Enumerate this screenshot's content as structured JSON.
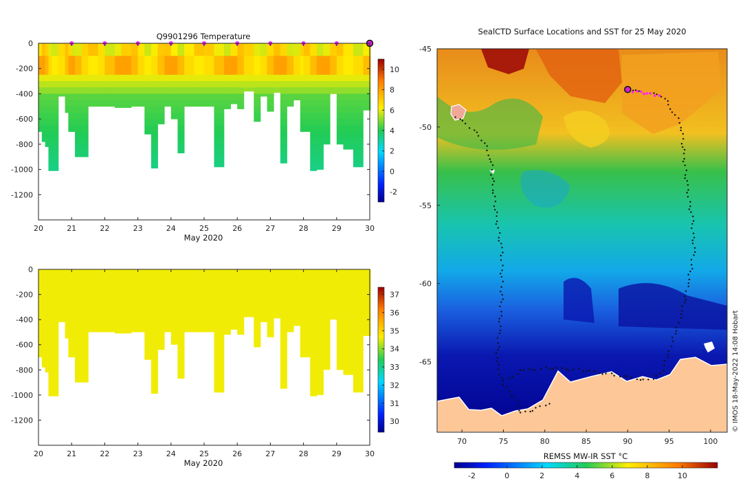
{
  "chart_data": [
    {
      "id": "temperature-section",
      "type": "heatmap",
      "title": "Q9901296  Temperature",
      "xlabel": "May 2020",
      "ylabel": "",
      "x_ticks": [
        "20",
        "21",
        "22",
        "23",
        "24",
        "25",
        "26",
        "27",
        "28",
        "29",
        "30"
      ],
      "y_ticks": [
        "0",
        "-200",
        "-400",
        "-600",
        "-800",
        "-1000",
        "-1200"
      ],
      "xlim": [
        20,
        30
      ],
      "ylim": [
        -1400,
        0
      ],
      "colorbar": {
        "ticks": [
          "10",
          "8",
          "6",
          "4",
          "2",
          "0",
          "-2"
        ],
        "range": [
          -3,
          11
        ]
      },
      "profile_days": [
        20.0,
        20.1,
        20.2,
        20.3,
        20.4,
        20.6,
        20.8,
        20.9,
        21.0,
        21.1,
        21.3,
        21.5,
        21.8,
        22.0,
        22.3,
        22.5,
        22.8,
        23.0,
        23.2,
        23.4,
        23.6,
        23.8,
        24.0,
        24.2,
        24.4,
        24.7,
        25.0,
        25.3,
        25.6,
        25.8,
        26.0,
        26.2,
        26.5,
        26.7,
        26.9,
        27.1,
        27.3,
        27.5,
        27.7,
        27.9,
        28.0,
        28.2,
        28.4,
        28.6,
        28.8,
        29.0,
        29.2,
        29.5,
        29.8,
        30.0
      ],
      "profile_max_depth": [
        -700,
        -780,
        -820,
        -1010,
        -1010,
        -420,
        -550,
        -700,
        -700,
        -900,
        -900,
        -500,
        -500,
        -500,
        -510,
        -510,
        -500,
        -500,
        -720,
        -990,
        -640,
        -500,
        -600,
        -870,
        -500,
        -500,
        -500,
        -980,
        -520,
        -480,
        -520,
        -380,
        -620,
        -420,
        -540,
        -390,
        -950,
        -500,
        -450,
        -700,
        -700,
        -1010,
        -1000,
        -800,
        -400,
        -800,
        -840,
        -980,
        -530,
        -530
      ],
      "stations": [
        "21",
        "22",
        "23",
        "24",
        "25",
        "26",
        "27",
        "28",
        "29"
      ],
      "current_station": "30"
    },
    {
      "id": "salinity-section",
      "type": "heatmap",
      "title": "",
      "xlabel": "May 2020",
      "ylabel": "",
      "x_ticks": [
        "20",
        "21",
        "22",
        "23",
        "24",
        "25",
        "26",
        "27",
        "28",
        "29",
        "30"
      ],
      "y_ticks": [
        "0",
        "-200",
        "-400",
        "-600",
        "-800",
        "-1000",
        "-1200"
      ],
      "xlim": [
        20,
        30
      ],
      "ylim": [
        -1400,
        0
      ],
      "colorbar": {
        "ticks": [
          "37",
          "36",
          "35",
          "34",
          "33",
          "32",
          "31",
          "30"
        ],
        "range": [
          29.4,
          37.4
        ]
      },
      "profile_max_depth": [
        -700,
        -780,
        -820,
        -1010,
        -1010,
        -420,
        -550,
        -700,
        -700,
        -900,
        -900,
        -500,
        -500,
        -500,
        -510,
        -510,
        -500,
        -500,
        -720,
        -990,
        -640,
        -500,
        -600,
        -870,
        -500,
        -500,
        -500,
        -980,
        -520,
        -480,
        -520,
        -380,
        -620,
        -420,
        -540,
        -390,
        -950,
        -500,
        -450,
        -700,
        -700,
        -1010,
        -1000,
        -800,
        -400,
        -800,
        -840,
        -980,
        -530,
        -530
      ],
      "uniform_value": 34.6
    },
    {
      "id": "sst-map",
      "type": "heatmap",
      "title": "SealCTD Surface Locations and SST for 25 May 2020",
      "xlabel": "",
      "ylabel": "",
      "x_ticks": [
        "70",
        "75",
        "80",
        "85",
        "90",
        "95",
        "100"
      ],
      "y_ticks": [
        "-45",
        "-50",
        "-55",
        "-60",
        "-65"
      ],
      "xlim": [
        67,
        102
      ],
      "ylim": [
        -69.5,
        -45
      ],
      "colorbar": {
        "label": "REMSS MW-IR SST °C",
        "ticks": [
          "-2",
          "0",
          "2",
          "4",
          "6",
          "8",
          "10"
        ],
        "range": [
          -3,
          12
        ]
      },
      "track_west": [
        [
          69.2,
          -49.3
        ],
        [
          71,
          -50
        ],
        [
          72.5,
          -50.8
        ],
        [
          73.5,
          -52
        ],
        [
          73.8,
          -54
        ],
        [
          74.2,
          -56
        ],
        [
          74.8,
          -58
        ],
        [
          74.8,
          -61
        ],
        [
          74.5,
          -63
        ],
        [
          74.2,
          -65
        ],
        [
          75,
          -66.5
        ],
        [
          76.5,
          -67.3
        ],
        [
          77.2,
          -68.3
        ],
        [
          79,
          -68
        ],
        [
          81,
          -67.5
        ]
      ],
      "track_east": [
        [
          90,
          -47.6
        ],
        [
          92,
          -47.8
        ],
        [
          94.2,
          -48
        ],
        [
          95.5,
          -49
        ],
        [
          96.5,
          -50
        ],
        [
          96.8,
          -52
        ],
        [
          97.2,
          -54
        ],
        [
          97.8,
          -56
        ],
        [
          98,
          -58
        ],
        [
          97.3,
          -60
        ],
        [
          96.5,
          -62
        ],
        [
          95.5,
          -63.5
        ],
        [
          94.6,
          -65
        ],
        [
          94,
          -65.8
        ],
        [
          92.5,
          -66.2
        ],
        [
          88,
          -65.8
        ],
        [
          84,
          -65.5
        ],
        [
          80,
          -65.4
        ],
        [
          77,
          -65.6
        ],
        [
          75.5,
          -66.2
        ]
      ],
      "current_position": [
        90,
        -47.6
      ]
    }
  ],
  "credit": "© IMOS 18-May-2022 14:08 Hobart"
}
